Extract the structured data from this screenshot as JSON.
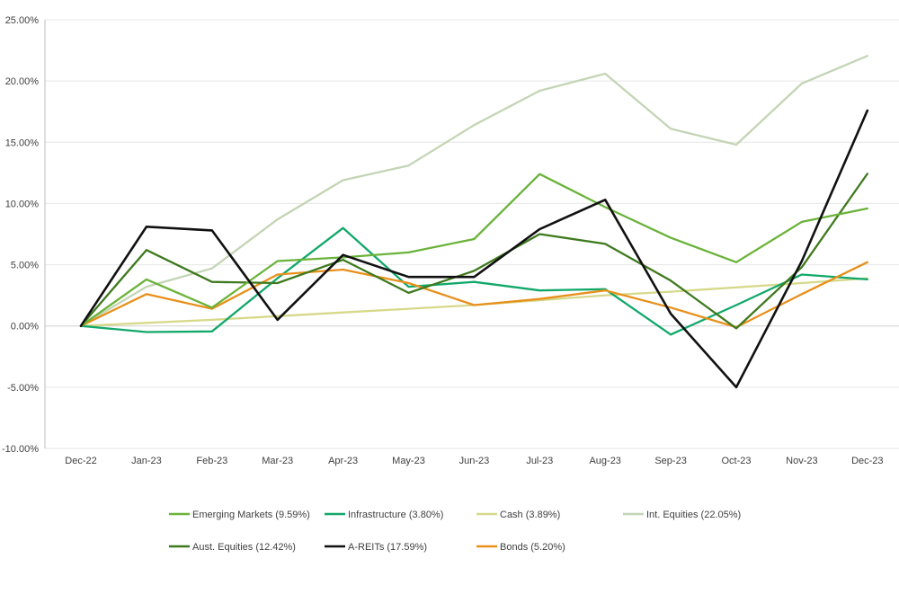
{
  "chart_data": {
    "type": "line",
    "title": "",
    "xlabel": "",
    "ylabel": "",
    "ylim": [
      -10,
      25
    ],
    "y_ticks": [
      -10,
      -5,
      0,
      5,
      10,
      15,
      20,
      25
    ],
    "y_tick_labels": [
      "-10.00%",
      "-5.00%",
      "0.00%",
      "5.00%",
      "10.00%",
      "15.00%",
      "20.00%",
      "25.00%"
    ],
    "grid": true,
    "legend_position": "bottom",
    "categories": [
      "Dec-22",
      "Jan-23",
      "Feb-23",
      "Mar-23",
      "Apr-23",
      "May-23",
      "Jun-23",
      "Jul-23",
      "Aug-23",
      "Sep-23",
      "Oct-23",
      "Nov-23",
      "Dec-23"
    ],
    "series": [
      {
        "name": "Int. Equities (22.05%)",
        "color": "#c3d5b5",
        "values": [
          0,
          3.2,
          4.7,
          8.7,
          11.9,
          13.1,
          16.4,
          19.2,
          20.6,
          16.1,
          14.8,
          19.8,
          22.05
        ]
      },
      {
        "name": "Cash (3.89%)",
        "color": "#d6d98a",
        "values": [
          0,
          0.25,
          0.5,
          0.8,
          1.1,
          1.4,
          1.7,
          2.1,
          2.5,
          2.8,
          3.15,
          3.5,
          3.89
        ]
      },
      {
        "name": "Infrastructure (3.80%)",
        "color": "#12a86a",
        "values": [
          0,
          -0.5,
          -0.45,
          3.9,
          8.0,
          3.2,
          3.6,
          2.9,
          3.0,
          -0.7,
          1.7,
          4.2,
          3.8
        ]
      },
      {
        "name": "Bonds (5.20%)",
        "color": "#e8901c",
        "values": [
          0,
          2.6,
          1.4,
          4.2,
          4.6,
          3.5,
          1.7,
          2.2,
          2.9,
          1.5,
          -0.1,
          2.6,
          5.2
        ]
      },
      {
        "name": "Aust. Equities (12.42%)",
        "color": "#3f7a1e",
        "values": [
          0,
          6.2,
          3.6,
          3.5,
          5.4,
          2.7,
          4.5,
          7.5,
          6.7,
          3.7,
          -0.2,
          4.8,
          12.42
        ]
      },
      {
        "name": "Emerging Markets (9.59%)",
        "color": "#6ab33a",
        "values": [
          0,
          3.8,
          1.5,
          5.3,
          5.6,
          6.0,
          7.1,
          12.4,
          9.7,
          7.2,
          5.2,
          8.5,
          9.59
        ]
      },
      {
        "name": "A-REITs (17.59%)",
        "color": "#111111",
        "values": [
          0,
          8.1,
          7.8,
          0.5,
          5.8,
          4.0,
          4.0,
          7.9,
          10.3,
          1.0,
          -5.0,
          5.3,
          17.59
        ]
      }
    ],
    "legend_order": [
      "Emerging Markets (9.59%)",
      "Infrastructure (3.80%)",
      "Cash (3.89%)",
      "Int. Equities (22.05%)",
      "Aust. Equities (12.42%)",
      "A-REITs (17.59%)",
      "Bonds (5.20%)"
    ]
  }
}
